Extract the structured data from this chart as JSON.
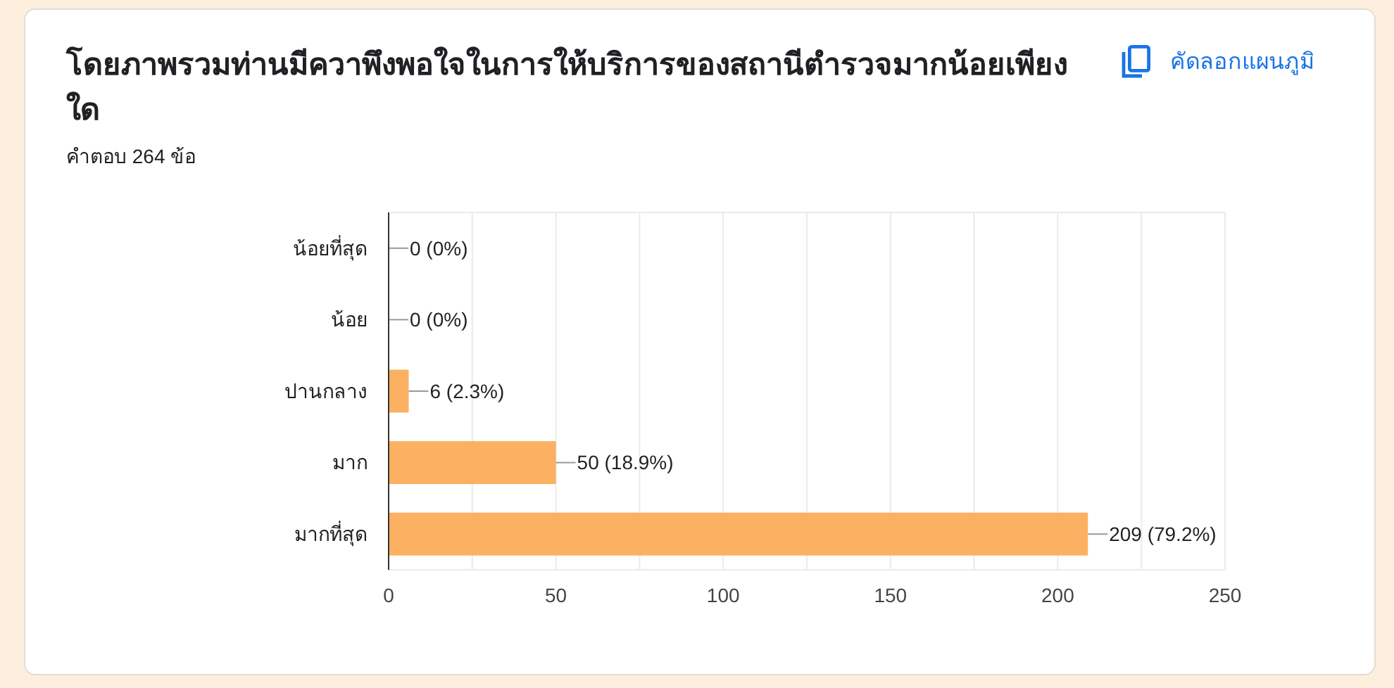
{
  "chart_data": {
    "type": "bar",
    "orientation": "horizontal",
    "title": "โดยภาพรวมท่านมีควาพึงพอใจในการให้บริการของสถานีตำรวจมากน้อยเพียงใด",
    "subtitle": "คำตอบ 264 ข้อ",
    "annotations": [
      "คัดลอกแผนภูมิ"
    ],
    "categories": [
      "น้อยที่สุด",
      "น้อย",
      "ปานกลาง",
      "มาก",
      "มากที่สุด"
    ],
    "values": [
      0,
      0,
      6,
      50,
      209
    ],
    "color": "#fbb161",
    "value_labels": [
      "0 (0%)",
      "0 (0%)",
      "6 (2.3%)",
      "50 (18.9%)",
      "209 (79.2%)"
    ],
    "xlim": [
      0,
      250
    ],
    "xticks": [
      0,
      {
        "value": 25,
        "label": null
      },
      50,
      {
        "value": 75,
        "label": null
      },
      100,
      {
        "value": 125,
        "label": null
      },
      150,
      {
        "value": 175,
        "label": null
      },
      200,
      {
        "value": 225,
        "label": null
      },
      250
    ],
    "grid": "x"
  }
}
